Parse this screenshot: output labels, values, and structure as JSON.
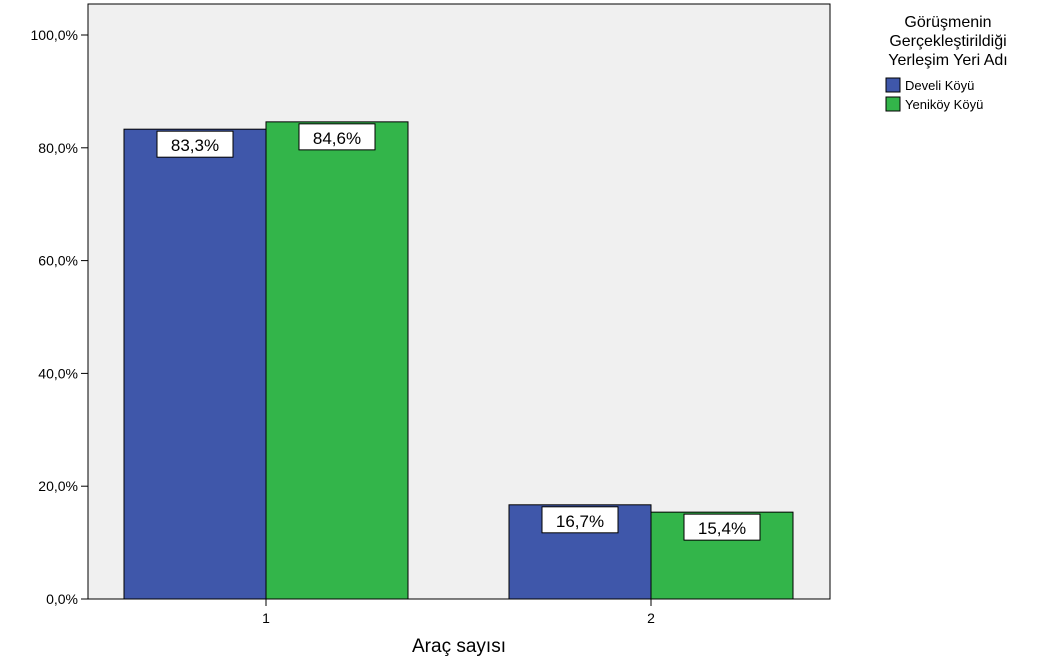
{
  "chart_data": {
    "type": "bar",
    "categories": [
      "1",
      "2"
    ],
    "series": [
      {
        "name": "Develi Köyü",
        "values": [
          83.3,
          16.7
        ],
        "labels": [
          "83,3%",
          "16,7%"
        ],
        "color": "#3f57aa"
      },
      {
        "name": "Yeniköy Köyü",
        "values": [
          84.6,
          15.4
        ],
        "labels": [
          "84,6%",
          "15,4%"
        ],
        "color": "#33b54a"
      }
    ],
    "xlabel": "Araç sayısı",
    "ylabel": "",
    "ylim": [
      0,
      100
    ],
    "yticks": [
      {
        "value": 0,
        "label": "0,0%"
      },
      {
        "value": 20,
        "label": "20,0%"
      },
      {
        "value": 40,
        "label": "40,0%"
      },
      {
        "value": 60,
        "label": "60,0%"
      },
      {
        "value": 80,
        "label": "80,0%"
      },
      {
        "value": 100,
        "label": "100,0%"
      }
    ],
    "grid": false,
    "plot_background": "#f0f0f0",
    "legend": {
      "placement": "top-right",
      "title_lines": [
        "Görüşmenin",
        "Gerçekleştirildiği",
        "Yerleşim Yeri Adı"
      ]
    }
  }
}
